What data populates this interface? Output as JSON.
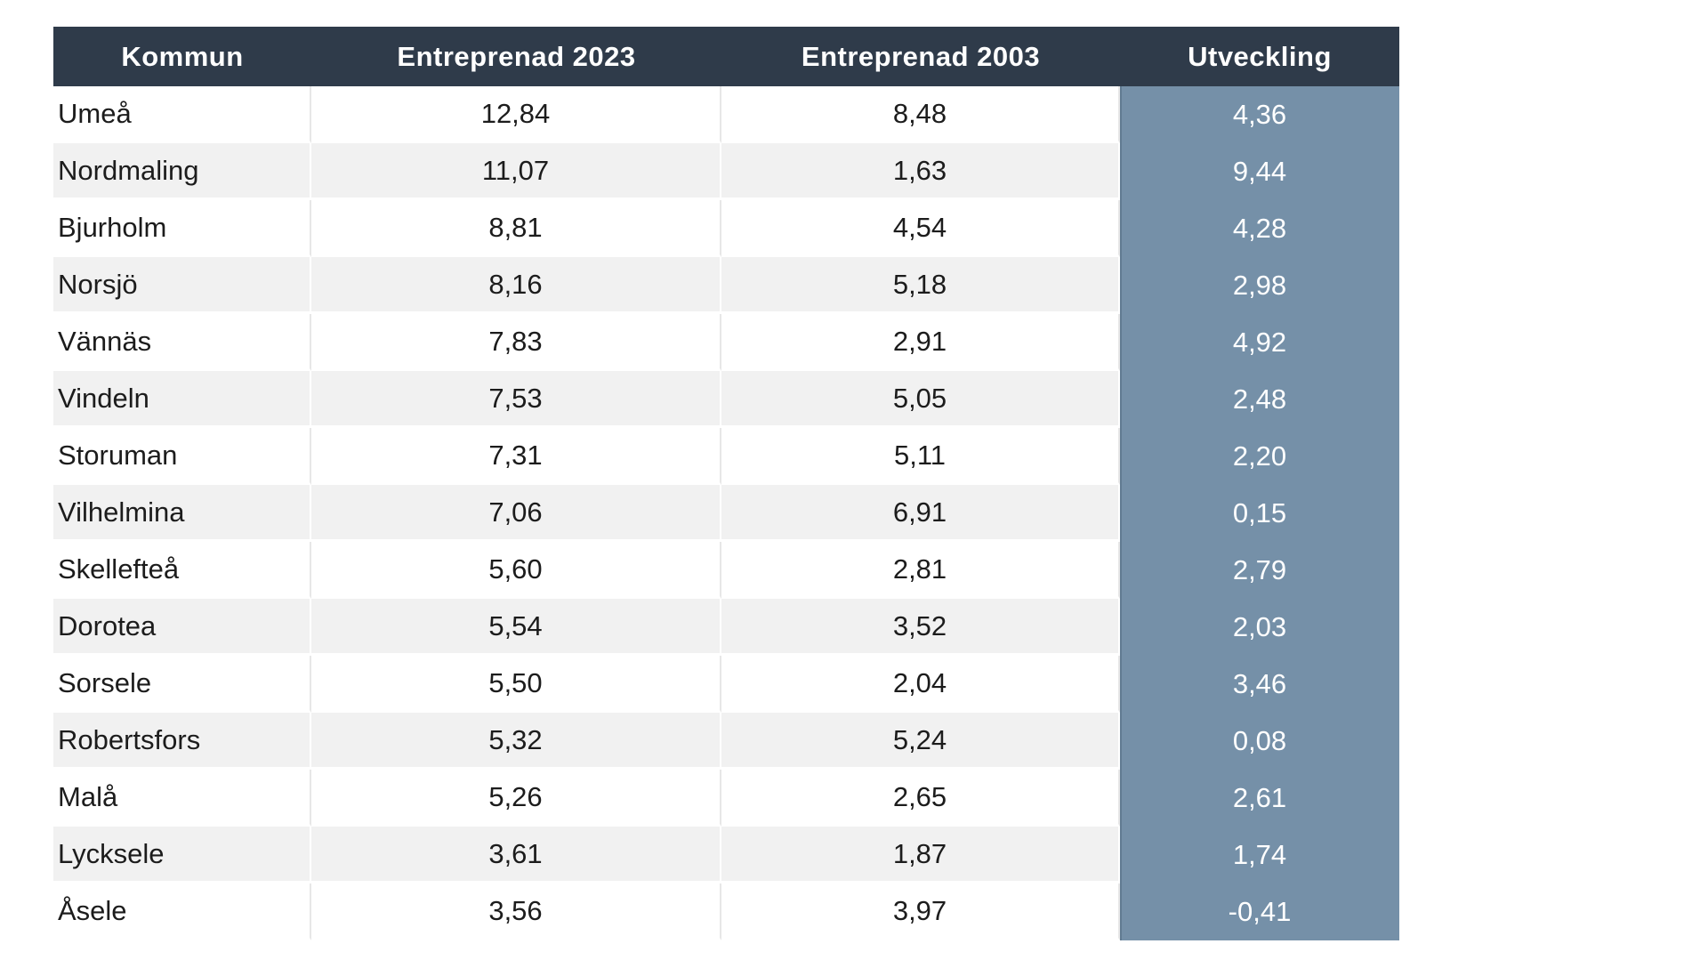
{
  "colors": {
    "page_background": "#ffffff",
    "header_bg": "#2f3b4a",
    "header_text": "#ffffff",
    "row_stripe": "#f1f1f1",
    "utveckling_bg": "#7590a8",
    "utveckling_text": "#ffffff",
    "body_text": "#1c1c1c"
  },
  "chart_data": {
    "type": "table",
    "columns": [
      "Kommun",
      "Entreprenad 2023",
      "Entreprenad 2003",
      "Utveckling"
    ],
    "rows": [
      [
        "Umeå",
        "12,84",
        "8,48",
        "4,36"
      ],
      [
        "Nordmaling",
        "11,07",
        "1,63",
        "9,44"
      ],
      [
        "Bjurholm",
        "8,81",
        "4,54",
        "4,28"
      ],
      [
        "Norsjö",
        "8,16",
        "5,18",
        "2,98"
      ],
      [
        "Vännäs",
        "7,83",
        "2,91",
        "4,92"
      ],
      [
        "Vindeln",
        "7,53",
        "5,05",
        "2,48"
      ],
      [
        "Storuman",
        "7,31",
        "5,11",
        "2,20"
      ],
      [
        "Vilhelmina",
        "7,06",
        "6,91",
        "0,15"
      ],
      [
        "Skellefteå",
        "5,60",
        "2,81",
        "2,79"
      ],
      [
        "Dorotea",
        "5,54",
        "3,52",
        "2,03"
      ],
      [
        "Sorsele",
        "5,50",
        "2,04",
        "3,46"
      ],
      [
        "Robertsfors",
        "5,32",
        "5,24",
        "0,08"
      ],
      [
        "Malå",
        "5,26",
        "2,65",
        "2,61"
      ],
      [
        "Lycksele",
        "3,61",
        "1,87",
        "1,74"
      ],
      [
        "Åsele",
        "3,56",
        "3,97",
        "-0,41"
      ]
    ]
  }
}
